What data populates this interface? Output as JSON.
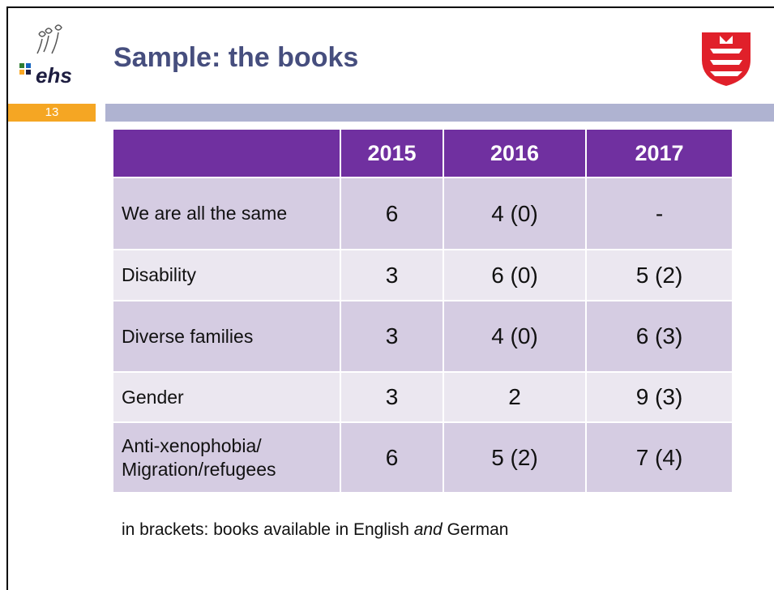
{
  "header": {
    "logo_text": "ehs",
    "title": "Sample: the books",
    "slide_number": "13"
  },
  "table": {
    "columns": [
      "2015",
      "2016",
      "2017"
    ],
    "rows": [
      [
        "We are all the same",
        "6",
        "4 (0)",
        "-"
      ],
      [
        "Disability",
        "3",
        "6 (0)",
        "5 (2)"
      ],
      [
        "Diverse families",
        "3",
        "4 (0)",
        "6 (3)"
      ],
      [
        "Gender",
        "3",
        "2",
        "9 (3)"
      ],
      [
        "Anti-xenophobia/\nMigration/refugees",
        "6",
        "5 (2)",
        "7 (4)"
      ]
    ]
  },
  "footnote": {
    "before": "in brackets: books available in English ",
    "emphasis": "and",
    "after": " German"
  }
}
